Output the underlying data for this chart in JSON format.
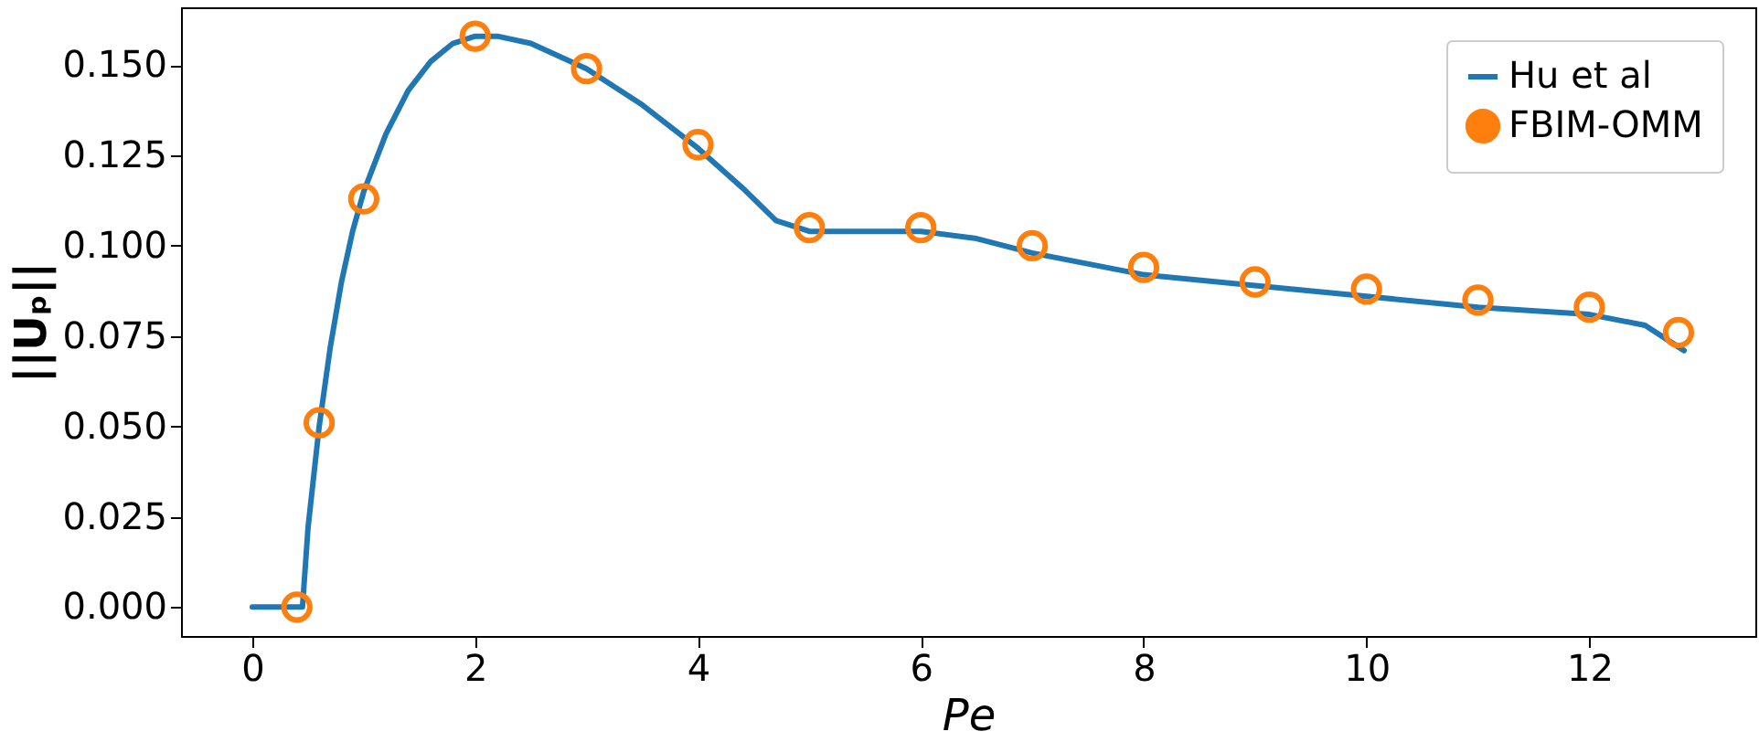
{
  "chart_data": {
    "type": "line",
    "xlabel": "Pe",
    "ylabel": "||Uₚ||",
    "xlim": [
      -0.64,
      13.49
    ],
    "ylim": [
      -0.008,
      0.166
    ],
    "xticks": [
      0,
      2,
      4,
      6,
      8,
      10,
      12
    ],
    "yticks": [
      {
        "value": 0,
        "label": "0.000"
      },
      {
        "value": 0.025,
        "label": "0.025"
      },
      {
        "value": 0.05,
        "label": "0.050"
      },
      {
        "value": 0.075,
        "label": "0.075"
      },
      {
        "value": 0.1,
        "label": "0.100"
      },
      {
        "value": 0.125,
        "label": "0.125"
      },
      {
        "value": 0.15,
        "label": "0.150"
      }
    ],
    "grid": false,
    "legend": "top right",
    "series": [
      {
        "name": "Hu et al",
        "type": "line",
        "color": "#1f77b4",
        "line_style": "solid",
        "x": [
          0,
          0.45,
          0.5,
          0.6,
          0.7,
          0.8,
          0.9,
          1,
          1.2,
          1.4,
          1.6,
          1.8,
          2,
          2.2,
          2.5,
          3,
          3.5,
          4,
          4.4,
          4.7,
          5,
          6,
          6.5,
          7,
          8,
          9,
          10,
          11,
          12,
          12.5,
          12.85
        ],
        "values": [
          0,
          0,
          0.022,
          0.05,
          0.072,
          0.09,
          0.104,
          0.115,
          0.131,
          0.143,
          0.151,
          0.156,
          0.158,
          0.158,
          0.156,
          0.149,
          0.139,
          0.127,
          0.116,
          0.107,
          0.104,
          0.104,
          0.102,
          0.098,
          0.092,
          0.089,
          0.086,
          0.083,
          0.081,
          0.078,
          0.071
        ]
      },
      {
        "name": "FBIM-OMM",
        "type": "scatter",
        "color": "#ff7f0e",
        "marker": "circle",
        "x": [
          0.4,
          0.6,
          1,
          2,
          3,
          4,
          5,
          6,
          7,
          8,
          9,
          10,
          11,
          12,
          12.8
        ],
        "values": [
          0,
          0.051,
          0.113,
          0.158,
          0.149,
          0.128,
          0.105,
          0.105,
          0.1,
          0.094,
          0.09,
          0.088,
          0.085,
          0.083,
          0.076
        ]
      }
    ]
  }
}
